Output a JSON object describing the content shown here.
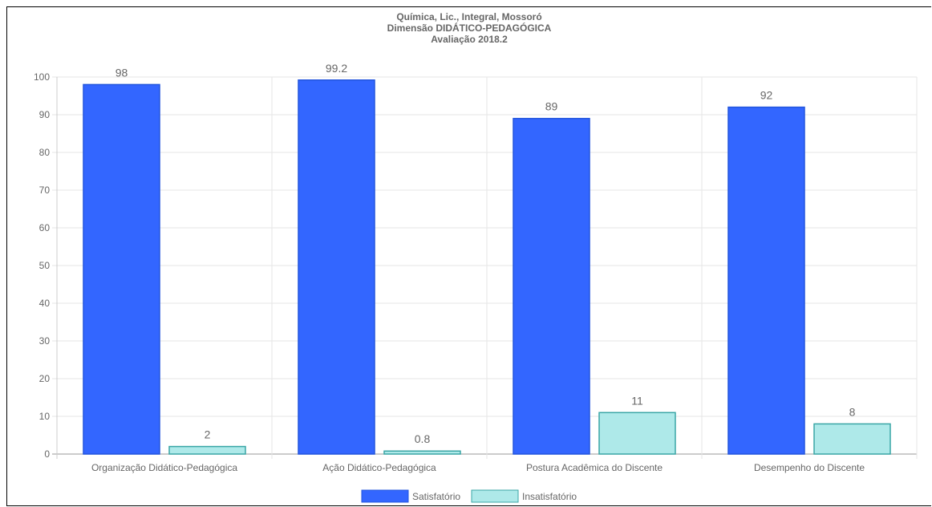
{
  "chart_data": {
    "type": "bar",
    "title_lines": [
      "Química, Lic., Integral, Mossoró",
      "Dimensão DIDÁTICO-PEDAGÓGICA",
      "Avaliação 2018.2"
    ],
    "categories": [
      "Organização Didático-Pedagógica",
      "Ação Didático-Pedagógica",
      "Postura Acadêmica do Discente",
      "Desempenho do Discente"
    ],
    "series": [
      {
        "name": "Satisfatório",
        "values": [
          98,
          99.2,
          89,
          92
        ],
        "color": "#3366ff",
        "border": "#2255dd"
      },
      {
        "name": "Insatisfatório",
        "values": [
          2,
          0.8,
          11,
          8
        ],
        "color": "#aee9e9",
        "border": "#3aa6a6"
      }
    ],
    "value_labels": [
      [
        "98",
        "99.2",
        "89",
        "92"
      ],
      [
        "2",
        "0.8",
        "11",
        "8"
      ]
    ],
    "ylim": [
      0,
      100
    ],
    "yticks": [
      "0",
      "10",
      "20",
      "30",
      "40",
      "50",
      "60",
      "70",
      "80",
      "90",
      "100"
    ],
    "grid": true,
    "legend_position": "bottom"
  }
}
